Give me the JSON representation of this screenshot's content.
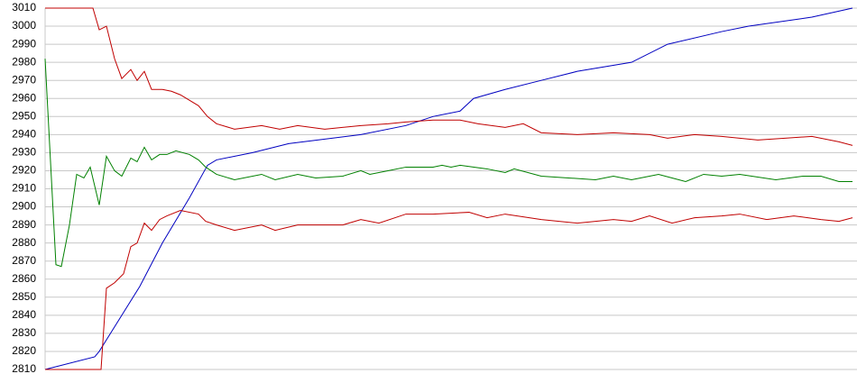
{
  "chart_data": {
    "type": "line",
    "xlim": [
      0,
      895
    ],
    "ylim": [
      2810,
      3010
    ],
    "yticks": [
      2810,
      2820,
      2830,
      2840,
      2850,
      2860,
      2870,
      2880,
      2890,
      2900,
      2910,
      2920,
      2930,
      2940,
      2950,
      2960,
      2970,
      2980,
      2990,
      3000,
      3010
    ],
    "grid": true,
    "series": [
      {
        "color": "#0000c0",
        "x": [
          0,
          55,
          60,
          105,
          130,
          160,
          180,
          190,
          230,
          270,
          350,
          400,
          430,
          460,
          475,
          510,
          550,
          590,
          650,
          690,
          750,
          780,
          850,
          895
        ],
        "values": [
          2810,
          2817,
          2820,
          2856,
          2880,
          2905,
          2923,
          2926,
          2930,
          2935,
          2940,
          2945,
          2950,
          2953,
          2960,
          2965,
          2970,
          2975,
          2980,
          2990,
          2997,
          3000,
          3005,
          3010
        ]
      },
      {
        "color": "#c00000",
        "x": [
          0,
          53,
          60,
          68,
          77,
          85,
          95,
          102,
          110,
          118,
          130,
          140,
          150,
          170,
          180,
          190,
          210,
          240,
          260,
          280,
          310,
          350,
          380,
          400,
          430,
          460,
          480,
          510,
          530,
          550,
          590,
          630,
          670,
          690,
          720,
          750,
          790,
          820,
          850,
          880,
          895
        ],
        "values": [
          3010,
          3010,
          2998,
          3000,
          2982,
          2971,
          2976,
          2970,
          2975,
          2965,
          2965,
          2964,
          2962,
          2956,
          2950,
          2946,
          2943,
          2945,
          2943,
          2945,
          2943,
          2945,
          2946,
          2947,
          2948,
          2948,
          2946,
          2944,
          2946,
          2941,
          2940,
          2941,
          2940,
          2938,
          2940,
          2939,
          2937,
          2938,
          2939,
          2936,
          2934
        ]
      },
      {
        "color": "#c00000",
        "x": [
          0,
          62,
          68,
          77,
          87,
          95,
          102,
          110,
          118,
          127,
          135,
          150,
          170,
          178,
          190,
          210,
          240,
          255,
          280,
          330,
          350,
          370,
          400,
          430,
          470,
          490,
          510,
          550,
          590,
          630,
          650,
          670,
          695,
          720,
          750,
          770,
          800,
          830,
          860,
          880,
          895
        ],
        "values": [
          2810,
          2810,
          2855,
          2858,
          2863,
          2878,
          2880,
          2891,
          2887,
          2893,
          2895,
          2898,
          2896,
          2892,
          2890,
          2887,
          2890,
          2887,
          2890,
          2890,
          2893,
          2891,
          2896,
          2896,
          2897,
          2894,
          2896,
          2893,
          2891,
          2893,
          2892,
          2895,
          2891,
          2894,
          2895,
          2896,
          2893,
          2895,
          2893,
          2892,
          2894
        ]
      },
      {
        "color": "#008000",
        "x": [
          0,
          6,
          12,
          18,
          27,
          35,
          43,
          50,
          60,
          68,
          77,
          85,
          95,
          102,
          110,
          118,
          127,
          135,
          145,
          160,
          170,
          178,
          190,
          210,
          240,
          255,
          280,
          300,
          330,
          350,
          360,
          380,
          400,
          430,
          440,
          450,
          460,
          490,
          510,
          520,
          550,
          580,
          610,
          630,
          650,
          670,
          680,
          695,
          710,
          730,
          750,
          770,
          810,
          840,
          860,
          880,
          895
        ],
        "values": [
          2982,
          2925,
          2868,
          2867,
          2890,
          2918,
          2916,
          2922,
          2901,
          2928,
          2920,
          2917,
          2927,
          2925,
          2933,
          2926,
          2929,
          2929,
          2931,
          2929,
          2926,
          2922,
          2918,
          2915,
          2918,
          2915,
          2918,
          2916,
          2917,
          2920,
          2918,
          2920,
          2922,
          2922,
          2923,
          2922,
          2923,
          2921,
          2919,
          2921,
          2917,
          2916,
          2915,
          2917,
          2915,
          2917,
          2918,
          2916,
          2914,
          2918,
          2917,
          2918,
          2915,
          2917,
          2917,
          2914,
          2914
        ]
      }
    ]
  }
}
